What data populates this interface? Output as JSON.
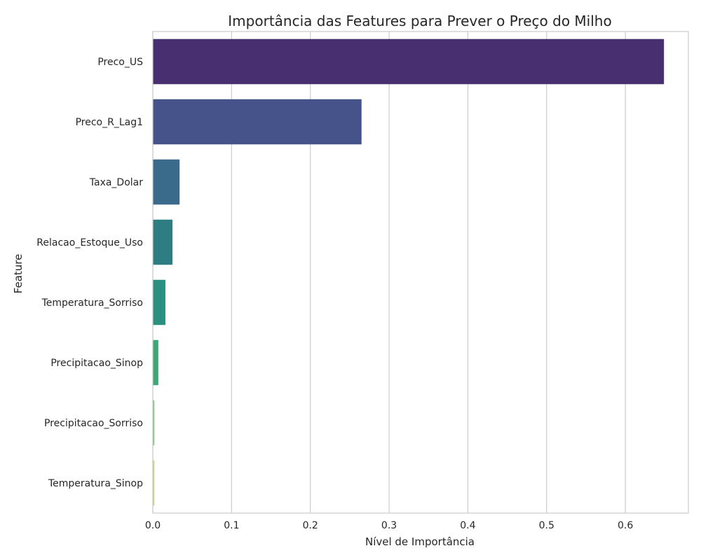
{
  "chart_data": {
    "type": "bar",
    "orientation": "horizontal",
    "title": "Importância das Features para Prever o Preço do Milho",
    "xlabel": "Nível de Importância",
    "ylabel": "Feature",
    "categories": [
      "Preco_US",
      "Preco_R_Lag1",
      "Taxa_Dolar",
      "Relacao_Estoque_Uso",
      "Temperatura_Sorriso",
      "Precipitacao_Sinop",
      "Precipitacao_Sorriso",
      "Temperatura_Sinop"
    ],
    "values": [
      0.649,
      0.265,
      0.034,
      0.025,
      0.016,
      0.007,
      0.002,
      0.002
    ],
    "colors": [
      "#482f6f",
      "#46528a",
      "#3b6b8b",
      "#2d7d83",
      "#2b9080",
      "#3aaa74",
      "#7dcb7c",
      "#c7db6a"
    ],
    "xlim": [
      0,
      0.68
    ],
    "xticks": [
      "0.0",
      "0.1",
      "0.2",
      "0.3",
      "0.4",
      "0.5",
      "0.6"
    ],
    "grid": true,
    "grid_color": "#cccccc",
    "background": "#ffffff"
  }
}
